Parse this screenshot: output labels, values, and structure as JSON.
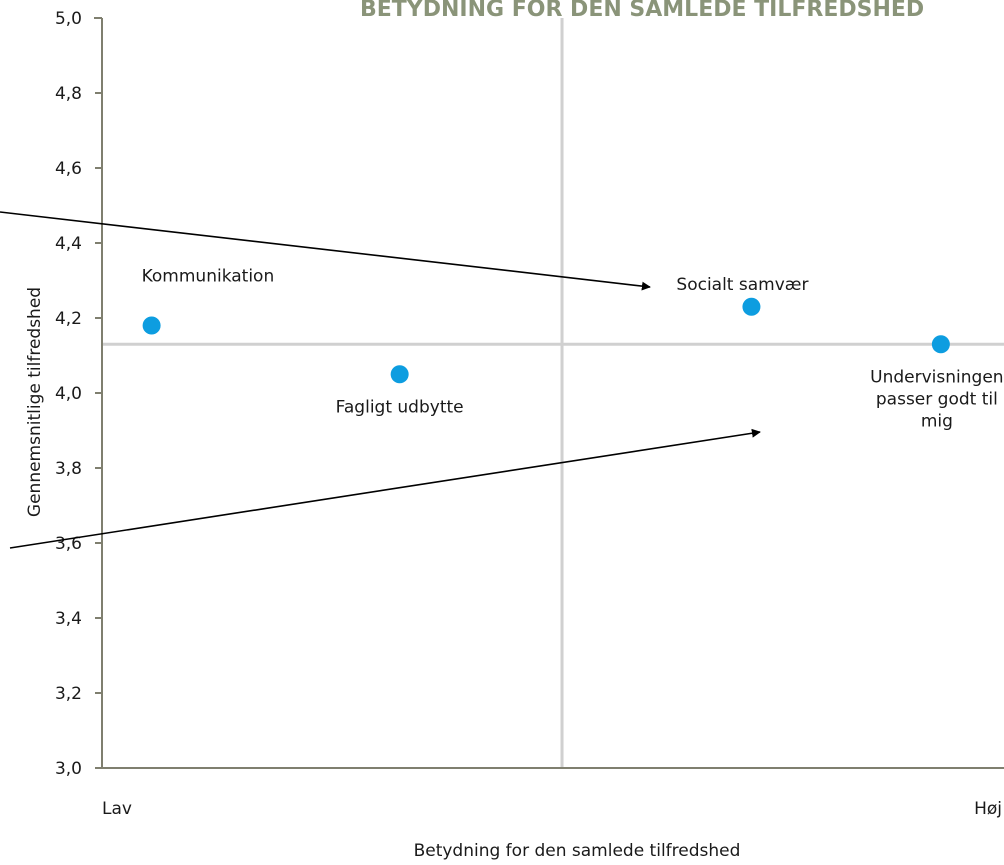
{
  "chart_data": {
    "type": "scatter",
    "title": "BETYDNING FOR DEN SAMLEDE TILFREDSHED",
    "xlabel": "Betydning for den samlede tilfredshed",
    "ylabel": "Gennemsnitlige tilfredshed",
    "x_tick_labels": [
      "Lav",
      "Høj"
    ],
    "x_range": [
      0,
      1
    ],
    "ylim": [
      3.0,
      5.0
    ],
    "y_ticks": [
      "3,0",
      "3,2",
      "3,4",
      "3,6",
      "3,8",
      "4,0",
      "4,2",
      "4,4",
      "4,6",
      "4,8",
      "5,0"
    ],
    "reference_lines": {
      "x": 0.51,
      "y": 4.13
    },
    "points": [
      {
        "label": "Kommunikation",
        "x": 0.055,
        "y": 4.18
      },
      {
        "label": "Fagligt udbytte",
        "x": 0.33,
        "y": 4.05
      },
      {
        "label": "Socialt samvær",
        "x": 0.72,
        "y": 4.23
      },
      {
        "label": "Undervisningen passer godt til mig",
        "x": 0.93,
        "y": 4.13
      }
    ],
    "point_color": "#0d9de0",
    "axis_color": "#7f7f6f",
    "reference_line_color": "#d0d0d0"
  }
}
